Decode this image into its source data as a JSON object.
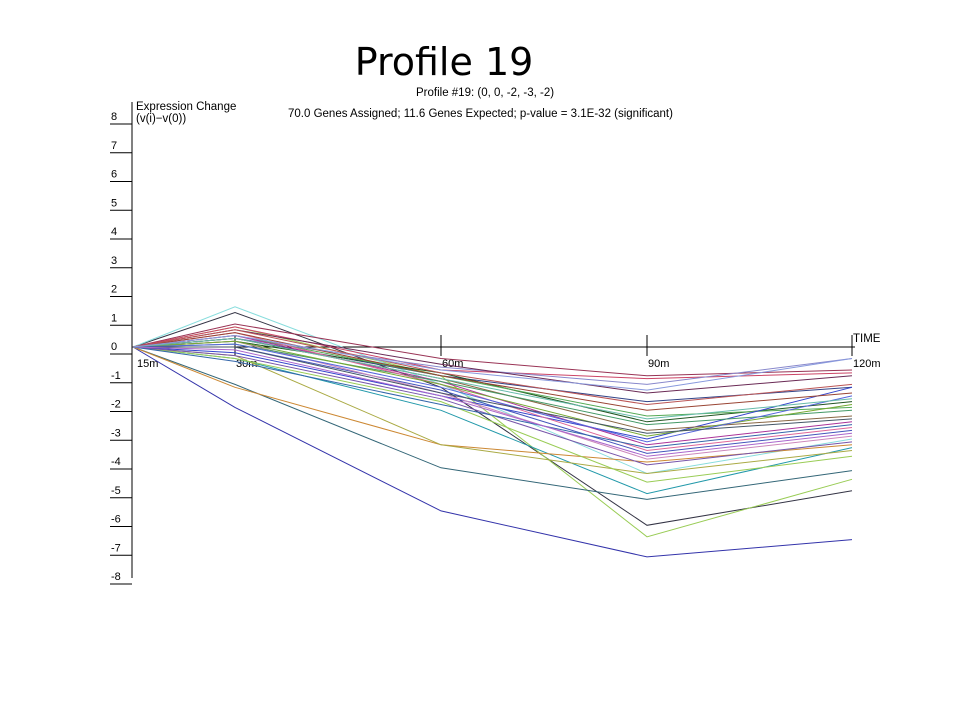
{
  "slide": {
    "title": "Profile 19"
  },
  "chart_data": {
    "type": "line",
    "title": "Profile #19: (0, 0, -2, -3, -2)",
    "subtitle": "70.0 Genes Assigned; 11.6 Genes Expected; p-value = 3.1E-32 (significant)",
    "ylabel": "Expression Change",
    "ylabel_formula": "(v(i)−v(0))",
    "xlabel": "TIME",
    "categories": [
      "15m",
      "30m",
      "60m",
      "90m",
      "120m"
    ],
    "y_ticks": [
      "8",
      "7",
      "6",
      "5",
      "4",
      "3",
      "2",
      "1",
      "0",
      "-1",
      "-2",
      "-3",
      "-4",
      "-5",
      "-6",
      "-7",
      "-8"
    ],
    "ylim": [
      -8,
      8
    ],
    "grid": false,
    "legend": "none",
    "series": [
      {
        "color": "#3333aa",
        "values": [
          0,
          -2.1,
          -5.7,
          -7.3,
          -6.7
        ]
      },
      {
        "color": "#333344",
        "values": [
          0,
          1.2,
          -1.4,
          -6.2,
          -5.0
        ]
      },
      {
        "color": "#99cc55",
        "values": [
          0,
          0.7,
          -1.0,
          -6.6,
          -4.6
        ]
      },
      {
        "color": "#336677",
        "values": [
          0,
          -1.3,
          -4.2,
          -5.3,
          -4.3
        ]
      },
      {
        "color": "#2299aa",
        "values": [
          0,
          -0.4,
          -2.2,
          -5.1,
          -3.5
        ]
      },
      {
        "color": "#88dddd",
        "values": [
          0,
          1.4,
          -1.3,
          -4.4,
          -3.2
        ]
      },
      {
        "color": "#cc8833",
        "values": [
          0,
          -1.4,
          -3.4,
          -4.0,
          -3.4
        ]
      },
      {
        "color": "#aaaa44",
        "values": [
          0,
          -0.3,
          -3.4,
          -4.4,
          -3.6
        ]
      },
      {
        "color": "#99cc55",
        "values": [
          0,
          -0.4,
          -1.9,
          -4.7,
          -3.8
        ]
      },
      {
        "color": "#993355",
        "values": [
          0,
          0.8,
          -0.4,
          -1.0,
          -0.8
        ]
      },
      {
        "color": "#cc4466",
        "values": [
          0,
          0.7,
          -0.8,
          -1.1,
          -0.9
        ]
      },
      {
        "color": "#8888cc",
        "values": [
          0,
          0.3,
          -0.7,
          -1.3,
          -0.4
        ]
      },
      {
        "color": "#6a2a55",
        "values": [
          0,
          0.6,
          -0.6,
          -1.6,
          -1.0
        ]
      },
      {
        "color": "#334488",
        "values": [
          0,
          0.3,
          -1.0,
          -1.9,
          -1.4
        ]
      },
      {
        "color": "#225522",
        "values": [
          0,
          0.2,
          -0.9,
          -2.6,
          -1.9
        ]
      },
      {
        "color": "#55aa55",
        "values": [
          0,
          0.4,
          -1.0,
          -2.4,
          -2.1
        ]
      },
      {
        "color": "#3344cc",
        "values": [
          0,
          -0.2,
          -1.7,
          -3.2,
          -1.4
        ]
      },
      {
        "color": "#aa3399",
        "values": [
          0,
          0.4,
          -1.2,
          -3.4,
          -2.6
        ]
      },
      {
        "color": "#4455bb",
        "values": [
          0,
          0.0,
          -1.5,
          -3.7,
          -2.9
        ]
      },
      {
        "color": "#cc88bb",
        "values": [
          0,
          0.2,
          -1.6,
          -3.9,
          -3.1
        ]
      },
      {
        "color": "#886644",
        "values": [
          0,
          0.3,
          -1.1,
          -2.9,
          -2.4
        ]
      },
      {
        "color": "#449966",
        "values": [
          0,
          0.1,
          -1.2,
          -2.7,
          -2.2
        ]
      },
      {
        "color": "#7755aa",
        "values": [
          0,
          -0.3,
          -1.8,
          -4.1,
          -3.3
        ]
      },
      {
        "color": "#dd6699",
        "values": [
          0,
          0.5,
          -1.3,
          -3.6,
          -2.8
        ]
      },
      {
        "color": "#3366aa",
        "values": [
          0,
          -0.5,
          -2.0,
          -3.5,
          -2.7
        ]
      },
      {
        "color": "#994433",
        "values": [
          0,
          0.5,
          -1.0,
          -2.2,
          -1.6
        ]
      },
      {
        "color": "#77aa33",
        "values": [
          0,
          0.2,
          -1.3,
          -3.1,
          -2.0
        ]
      },
      {
        "color": "#5566dd",
        "values": [
          0,
          0.1,
          -1.4,
          -3.3,
          -1.7
        ]
      },
      {
        "color": "#bb5555",
        "values": [
          0,
          0.6,
          -0.9,
          -2.0,
          -1.3
        ]
      },
      {
        "color": "#445566",
        "values": [
          0,
          0.0,
          -1.6,
          -3.0,
          -2.5
        ]
      },
      {
        "color": "#aa66cc",
        "values": [
          0,
          -0.1,
          -1.7,
          -3.8,
          -3.0
        ]
      },
      {
        "color": "#66bbaa",
        "values": [
          0,
          0.3,
          -1.1,
          -2.5,
          -1.8
        ]
      },
      {
        "color": "#8899dd",
        "values": [
          0,
          0.4,
          -0.8,
          -1.5,
          -0.4
        ]
      }
    ]
  }
}
